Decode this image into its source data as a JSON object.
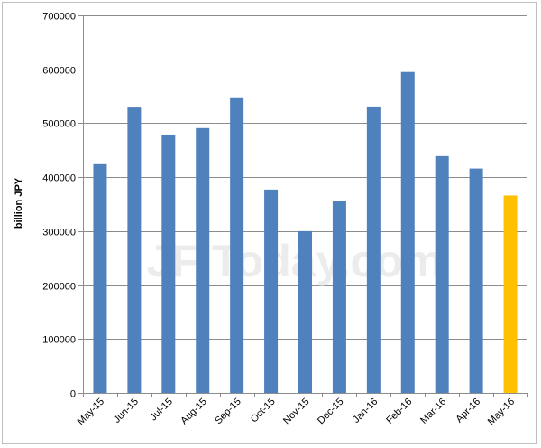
{
  "chart_data": {
    "type": "bar",
    "ylabel": "billion JPY",
    "xlabel": "",
    "ylim": [
      0,
      700000
    ],
    "yticks": [
      0,
      100000,
      200000,
      300000,
      400000,
      500000,
      600000,
      700000
    ],
    "grid": true,
    "legend": "none",
    "categories": [
      "May-15",
      "Jun-15",
      "Jul-15",
      "Aug-15",
      "Sep-15",
      "Oct-15",
      "Nov-15",
      "Dec-15",
      "Jan-16",
      "Feb-16",
      "Mar-16",
      "Apr-16",
      "May-16"
    ],
    "values": [
      424000,
      529000,
      479000,
      491000,
      548000,
      377000,
      300000,
      356000,
      531000,
      595000,
      439000,
      416000,
      366000
    ],
    "bar_colors": [
      "#4f81bd",
      "#4f81bd",
      "#4f81bd",
      "#4f81bd",
      "#4f81bd",
      "#4f81bd",
      "#4f81bd",
      "#4f81bd",
      "#4f81bd",
      "#4f81bd",
      "#4f81bd",
      "#4f81bd",
      "#ffc000"
    ],
    "watermark": "JF Today.com"
  }
}
